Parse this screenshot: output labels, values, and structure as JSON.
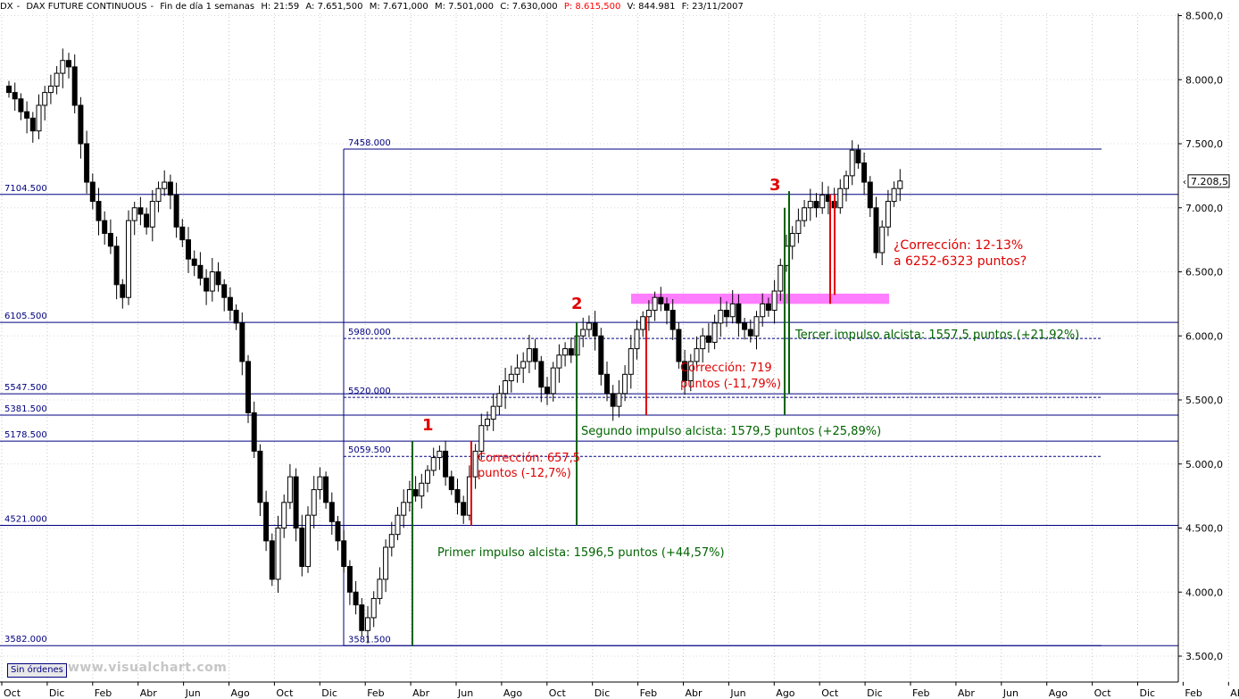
{
  "header": {
    "symbol": "DX",
    "name": "DAX FUTURE CONTINUOUS",
    "timeframe": "Fin de día 1 semanas",
    "time": "H: 21:59",
    "open": "A: 7.651,500",
    "high": "M: 7.671,000",
    "low": "M: 7.501,000",
    "close": "C: 7.630,000",
    "prev": "P: 8.615,500",
    "volume": "V: 844.981",
    "date": "F: 23/11/2007"
  },
  "orders_button": "Sin órdenes",
  "watermark": "www.visualchart.com",
  "colors": {
    "up": "#ffffff",
    "down": "#000000",
    "level_line": "#000080",
    "green": "#006400",
    "red": "#e00000",
    "magenta": "#ff66ff"
  },
  "chart_data": {
    "type": "candlestick",
    "ylim": [
      3500,
      8500
    ],
    "yticks": [
      {
        "v": 3500,
        "label": "3.500,0"
      },
      {
        "v": 4000,
        "label": "4.000,0"
      },
      {
        "v": 4500,
        "label": "4.500,0"
      },
      {
        "v": 5000,
        "label": "5.000,0"
      },
      {
        "v": 5500,
        "label": "5.500,0"
      },
      {
        "v": 6000,
        "label": "6.000,0"
      },
      {
        "v": 6500,
        "label": "6.500,0"
      },
      {
        "v": 7000,
        "label": "7.000,0"
      },
      {
        "v": 7500,
        "label": "7.500,0"
      },
      {
        "v": 8000,
        "label": "8.000,0"
      },
      {
        "v": 8500,
        "label": "8.500,0"
      }
    ],
    "x_months": [
      "Oct",
      "Dic",
      "Feb",
      "Abr",
      "Jun",
      "Ago",
      "Oct",
      "Dic",
      "Feb",
      "Abr",
      "Jun",
      "Ago",
      "Oct",
      "Dic",
      "Feb",
      "Abr",
      "Jun",
      "Ago",
      "Oct",
      "Dic",
      "Feb",
      "Abr",
      "Jun",
      "Ago",
      "Oct",
      "Dic",
      "Feb",
      "Abr"
    ],
    "last_price_label": "7.208,5",
    "levels": [
      {
        "value": 7104.5,
        "label": "7104.500"
      },
      {
        "value": 6105.5,
        "label": "6105.500"
      },
      {
        "value": 5547.5,
        "label": "5547.500"
      },
      {
        "value": 5381.5,
        "label": "5381.500"
      },
      {
        "value": 5178.5,
        "label": "5178.500"
      },
      {
        "value": 4521,
        "label": "4521.000"
      },
      {
        "value": 3582,
        "label": "3582.000"
      }
    ],
    "fib_levels": [
      {
        "value": 7458,
        "label": "7458.000",
        "style": "solid"
      },
      {
        "value": 5980,
        "label": "5980.000",
        "style": "dashed"
      },
      {
        "value": 5520,
        "label": "5520.000",
        "style": "dashed"
      },
      {
        "value": 5059.5,
        "label": "5059.500",
        "style": "dashed"
      },
      {
        "value": 3581.5,
        "label": "3581.500",
        "style": "solid"
      }
    ],
    "wave_labels": [
      "1",
      "2",
      "3"
    ],
    "annotations": {
      "impulse1": "Primer impulso alcista: 1596,5 puntos (+44,57%)",
      "impulse2": "Segundo impulso alcista: 1579,5 puntos (+25,89%)",
      "impulse3": "Tercer impulso alcista: 1557,5 puntos (+21,92%)",
      "corr1": [
        "Corrección: 657,5",
        "puntos (-12,7%)"
      ],
      "corr2": [
        "Corrección: 719",
        "puntos (-11,79%)"
      ],
      "corr3": [
        "¿Corrección: 12-13%",
        "a 6252-6323 puntos?"
      ]
    },
    "candle_path": [
      7900,
      7850,
      7750,
      7700,
      7600,
      7800,
      7900,
      7950,
      8050,
      8150,
      8100,
      7800,
      7500,
      7200,
      7050,
      6900,
      6800,
      6700,
      6400,
      6300,
      6900,
      7000,
      6950,
      6850,
      7050,
      7150,
      7200,
      7100,
      6850,
      6750,
      6600,
      6550,
      6450,
      6350,
      6500,
      6400,
      6300,
      6200,
      6100,
      5800,
      5400,
      5100,
      4700,
      4400,
      4100,
      4500,
      4700,
      4900,
      4500,
      4200,
      4600,
      4800,
      4900,
      4700,
      4550,
      4400,
      4200,
      4000,
      3900,
      3700,
      3800,
      3950,
      4100,
      4350,
      4450,
      4600,
      4700,
      4800,
      4750,
      4850,
      4950,
      5050,
      5100,
      4900,
      4800,
      4700,
      4600,
      4900,
      5100,
      5300,
      5350,
      5450,
      5550,
      5650,
      5700,
      5750,
      5800,
      5900,
      5800,
      5600,
      5550,
      5750,
      5850,
      5900,
      5850,
      6000,
      6050,
      6100,
      6000,
      5700,
      5550,
      5450,
      5550,
      5700,
      5900,
      6050,
      6150,
      6200,
      6300,
      6250,
      6200,
      6050,
      5800,
      5650,
      5800,
      5900,
      6000,
      5950,
      6100,
      6200,
      6150,
      6250,
      6100,
      6050,
      6000,
      6150,
      6250,
      6200,
      6350,
      6550,
      6700,
      6800,
      6900,
      7000,
      7050,
      7000,
      7100,
      7050,
      7000,
      7150,
      7250,
      7450,
      7350,
      7200,
      7000,
      6650,
      6850,
      7050,
      7150,
      7209
    ],
    "chart_start_value": 7950
  }
}
